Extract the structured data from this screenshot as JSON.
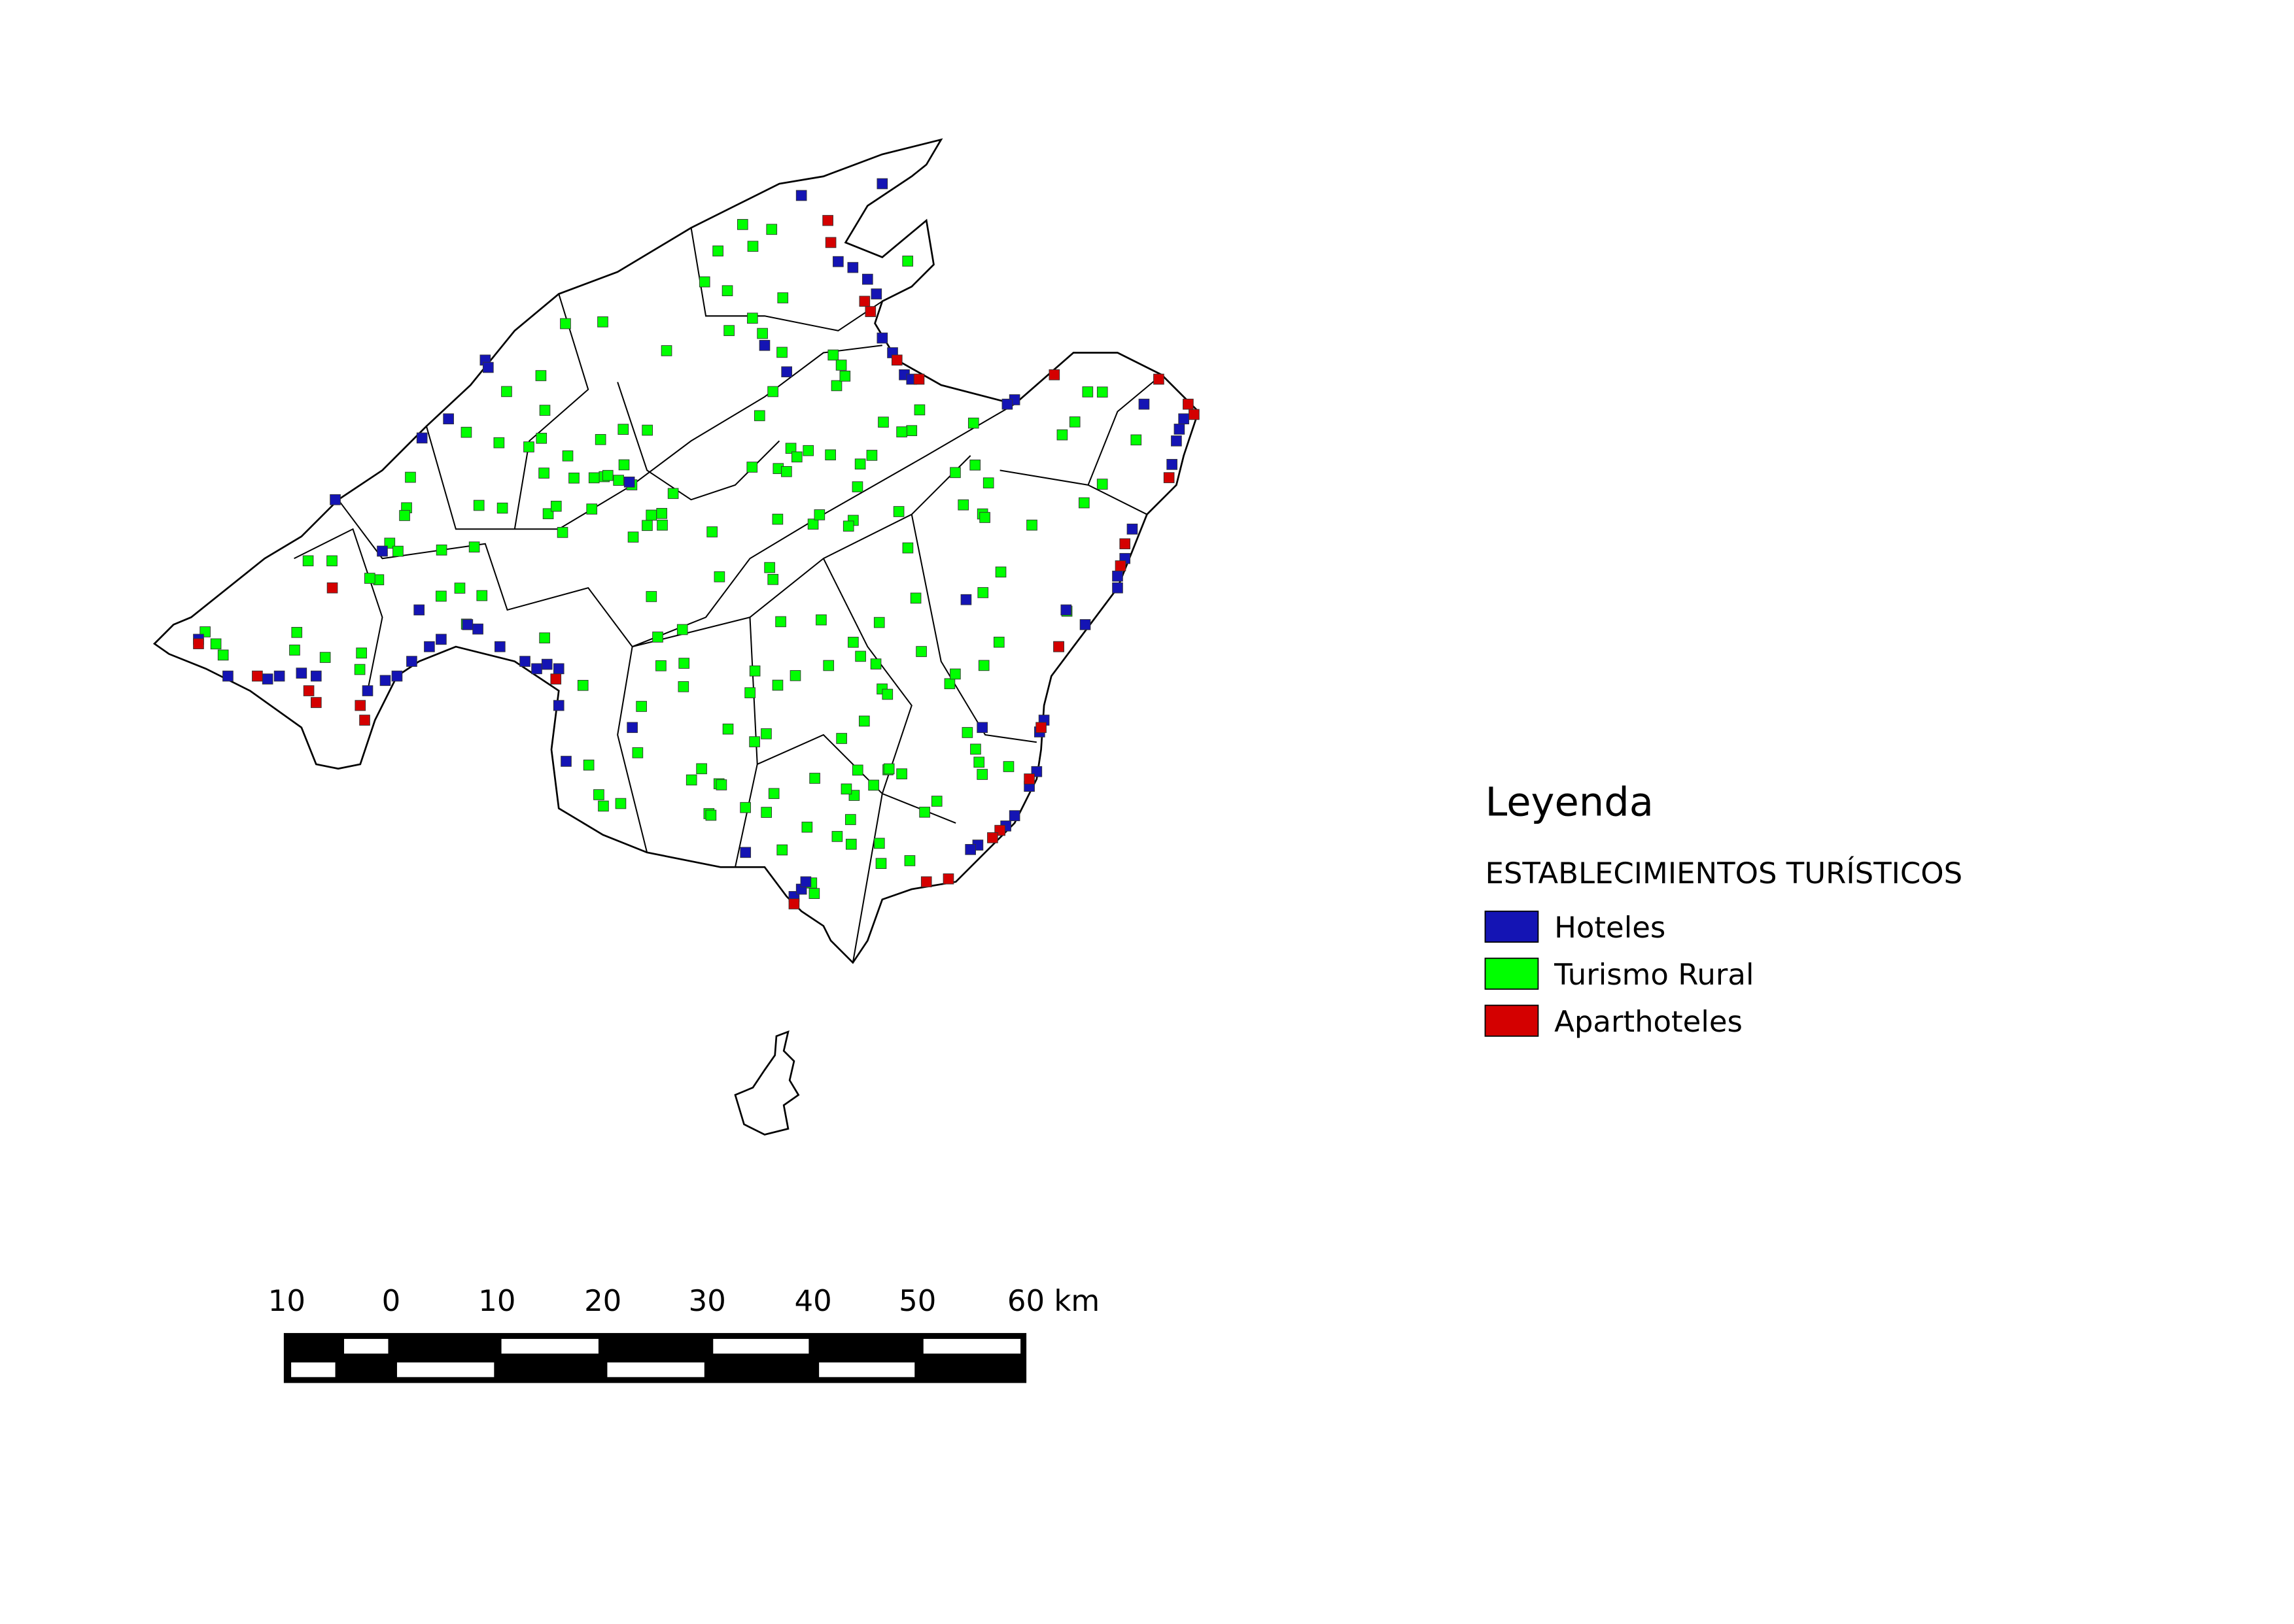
{
  "legend": {
    "title": "Leyenda",
    "subtitle": "ESTABLECIMIENTOS TURÍSTICOS",
    "items": [
      {
        "name": "Hoteles",
        "color": "#1414b4"
      },
      {
        "name": "Turismo Rural",
        "color": "#00ff00"
      },
      {
        "name": "Aparthoteles",
        "color": "#d40000"
      }
    ]
  },
  "scale_bar": {
    "labels": [
      "10",
      "0",
      "10",
      "20",
      "30",
      "40",
      "50",
      "60 km"
    ]
  }
}
